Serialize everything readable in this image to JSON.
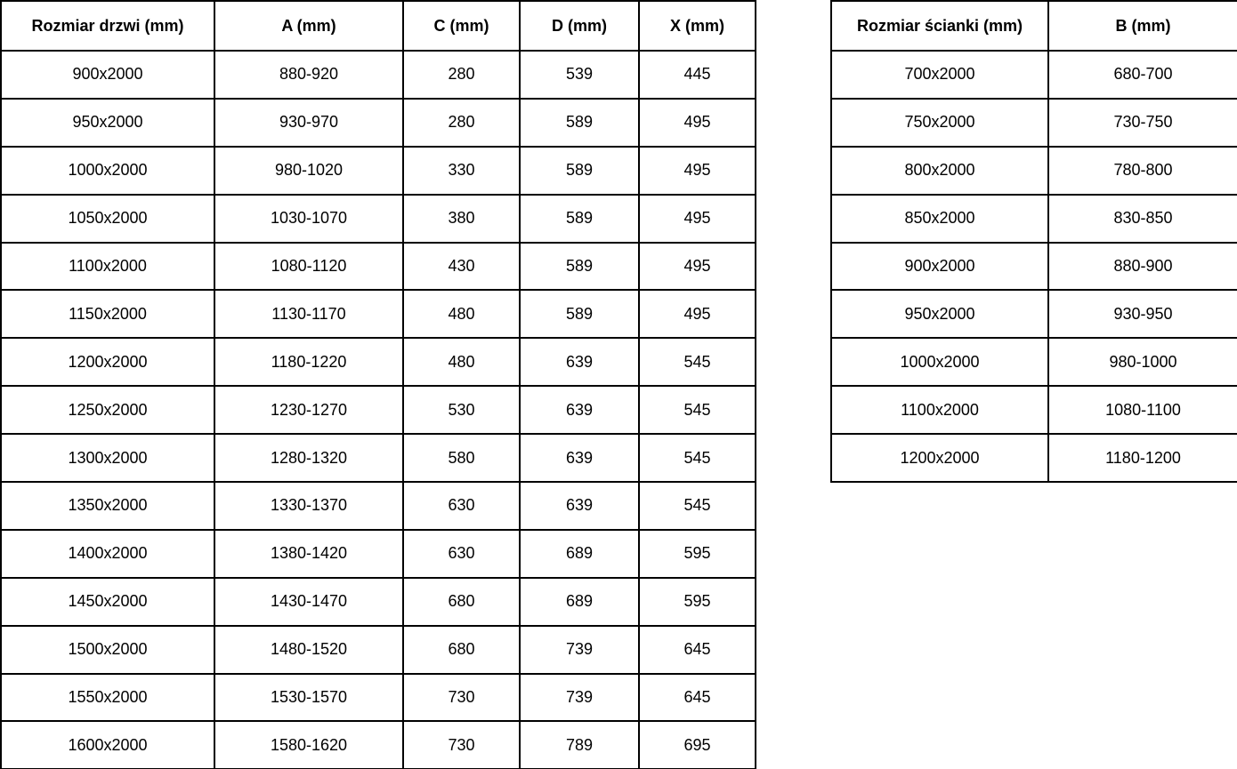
{
  "doors_table": {
    "headers": [
      "Rozmiar drzwi (mm)",
      "A (mm)",
      "C (mm)",
      "D (mm)",
      "X (mm)"
    ],
    "rows": [
      [
        "900x2000",
        "880-920",
        "280",
        "539",
        "445"
      ],
      [
        "950x2000",
        "930-970",
        "280",
        "589",
        "495"
      ],
      [
        "1000x2000",
        "980-1020",
        "330",
        "589",
        "495"
      ],
      [
        "1050x2000",
        "1030-1070",
        "380",
        "589",
        "495"
      ],
      [
        "1100x2000",
        "1080-1120",
        "430",
        "589",
        "495"
      ],
      [
        "1150x2000",
        "1130-1170",
        "480",
        "589",
        "495"
      ],
      [
        "1200x2000",
        "1180-1220",
        "480",
        "639",
        "545"
      ],
      [
        "1250x2000",
        "1230-1270",
        "530",
        "639",
        "545"
      ],
      [
        "1300x2000",
        "1280-1320",
        "580",
        "639",
        "545"
      ],
      [
        "1350x2000",
        "1330-1370",
        "630",
        "639",
        "545"
      ],
      [
        "1400x2000",
        "1380-1420",
        "630",
        "689",
        "595"
      ],
      [
        "1450x2000",
        "1430-1470",
        "680",
        "689",
        "595"
      ],
      [
        "1500x2000",
        "1480-1520",
        "680",
        "739",
        "645"
      ],
      [
        "1550x2000",
        "1530-1570",
        "730",
        "739",
        "645"
      ],
      [
        "1600x2000",
        "1580-1620",
        "730",
        "789",
        "695"
      ]
    ]
  },
  "walls_table": {
    "headers": [
      "Rozmiar ścianki (mm)",
      "B (mm)"
    ],
    "rows": [
      [
        "700x2000",
        "680-700"
      ],
      [
        "750x2000",
        "730-750"
      ],
      [
        "800x2000",
        "780-800"
      ],
      [
        "850x2000",
        "830-850"
      ],
      [
        "900x2000",
        "880-900"
      ],
      [
        "950x2000",
        "930-950"
      ],
      [
        "1000x2000",
        "980-1000"
      ],
      [
        "1100x2000",
        "1080-1100"
      ],
      [
        "1200x2000",
        "1180-1200"
      ]
    ]
  }
}
